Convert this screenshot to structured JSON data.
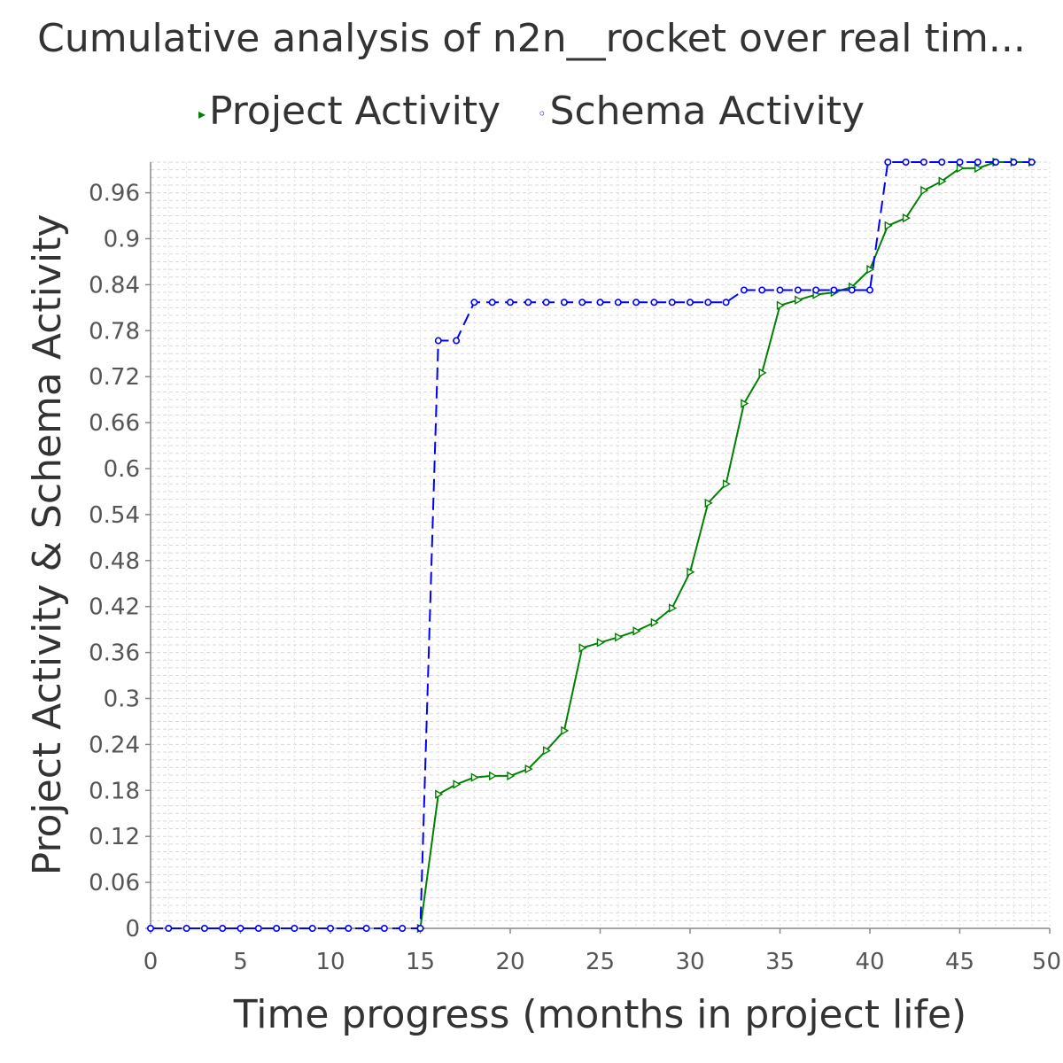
{
  "chart_data": {
    "type": "line",
    "title": "Cumulative analysis of n2n__rocket over real tim...",
    "xlabel": "Time progress (months in project life)",
    "ylabel": "Project Activity & Schema Activity",
    "xlim": [
      0,
      50
    ],
    "ylim": [
      0,
      1.0
    ],
    "x_ticks": [
      "0",
      "5",
      "10",
      "15",
      "20",
      "25",
      "30",
      "35",
      "40",
      "45",
      "50"
    ],
    "y_ticks": [
      "0",
      "0.06",
      "0.12",
      "0.18",
      "0.24",
      "0.3",
      "0.36",
      "0.42",
      "0.48",
      "0.54",
      "0.6",
      "0.66",
      "0.72",
      "0.78",
      "0.84",
      "0.9",
      "0.96"
    ],
    "grid": true,
    "legend_position": "top-center",
    "series": [
      {
        "name": "Project Activity",
        "color": "#008000",
        "marker": "triangle-right",
        "line_style": "solid",
        "x": [
          15,
          16,
          17,
          18,
          19,
          20,
          21,
          22,
          23,
          24,
          25,
          26,
          27,
          28,
          29,
          30,
          31,
          32,
          33,
          34,
          35,
          36,
          37,
          38,
          39,
          40,
          41,
          42,
          43,
          44,
          45,
          46,
          47,
          48,
          49
        ],
        "y": [
          0.0,
          0.175,
          0.188,
          0.197,
          0.199,
          0.199,
          0.208,
          0.232,
          0.258,
          0.366,
          0.373,
          0.38,
          0.388,
          0.399,
          0.418,
          0.465,
          0.555,
          0.58,
          0.685,
          0.725,
          0.813,
          0.82,
          0.827,
          0.83,
          0.837,
          0.86,
          0.917,
          0.927,
          0.963,
          0.975,
          0.992,
          0.992,
          1.0,
          1.0,
          1.0
        ]
      },
      {
        "name": "Schema Activity",
        "color": "#0000ff",
        "marker": "circle",
        "line_style": "dashed",
        "x": [
          0,
          1,
          2,
          3,
          4,
          5,
          6,
          7,
          8,
          9,
          10,
          11,
          12,
          13,
          14,
          15,
          16,
          17,
          18,
          19,
          20,
          21,
          22,
          23,
          24,
          25,
          26,
          27,
          28,
          29,
          30,
          31,
          32,
          33,
          34,
          35,
          36,
          37,
          38,
          39,
          40,
          41,
          42,
          43,
          44,
          45,
          46,
          47,
          48,
          49
        ],
        "y": [
          0,
          0,
          0,
          0,
          0,
          0,
          0,
          0,
          0,
          0,
          0,
          0,
          0,
          0,
          0,
          0,
          0.767,
          0.767,
          0.817,
          0.817,
          0.817,
          0.817,
          0.817,
          0.817,
          0.817,
          0.817,
          0.817,
          0.817,
          0.817,
          0.817,
          0.817,
          0.817,
          0.817,
          0.833,
          0.833,
          0.833,
          0.833,
          0.833,
          0.833,
          0.833,
          0.833,
          1.0,
          1.0,
          1.0,
          1.0,
          1.0,
          1.0,
          1.0,
          1.0,
          1.0
        ]
      }
    ]
  }
}
